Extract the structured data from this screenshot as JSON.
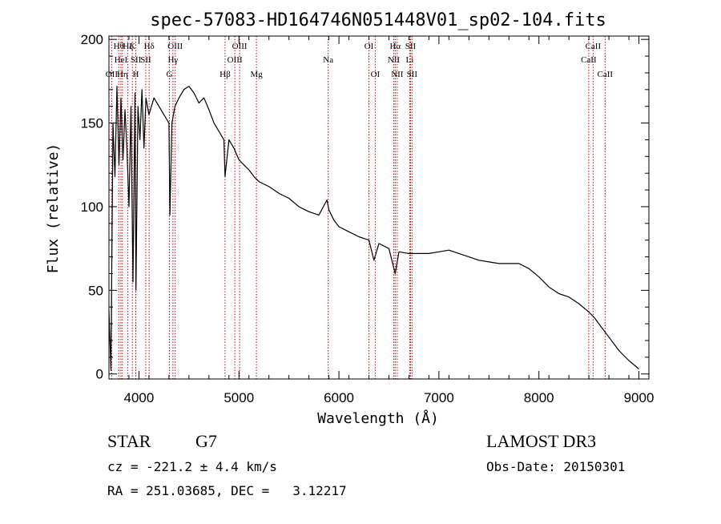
{
  "chart_data": {
    "type": "line",
    "title": "spec-57083-HD164746N051448V01_sp02-104.fits",
    "xlabel": "Wavelength (Å)",
    "ylabel": "Flux (relative)",
    "xlim": [
      3700,
      9100
    ],
    "ylim": [
      -3,
      202
    ],
    "x_ticks": [
      4000,
      5000,
      6000,
      7000,
      8000,
      9000
    ],
    "y_ticks": [
      0,
      50,
      100,
      150,
      200
    ],
    "grid": false,
    "series": [
      {
        "name": "spectrum",
        "color": "#000000",
        "points": [
          [
            3700,
            38
          ],
          [
            3720,
            2
          ],
          [
            3740,
            150
          ],
          [
            3760,
            118
          ],
          [
            3780,
            172
          ],
          [
            3800,
            125
          ],
          [
            3820,
            165
          ],
          [
            3840,
            128
          ],
          [
            3860,
            158
          ],
          [
            3880,
            134
          ],
          [
            3900,
            100
          ],
          [
            3920,
            160
          ],
          [
            3940,
            55
          ],
          [
            3960,
            168
          ],
          [
            3970,
            50
          ],
          [
            3990,
            160
          ],
          [
            4010,
            140
          ],
          [
            4030,
            170
          ],
          [
            4050,
            135
          ],
          [
            4070,
            165
          ],
          [
            4100,
            155
          ],
          [
            4150,
            165
          ],
          [
            4200,
            160
          ],
          [
            4250,
            155
          ],
          [
            4300,
            150
          ],
          [
            4310,
            95
          ],
          [
            4330,
            150
          ],
          [
            4360,
            160
          ],
          [
            4400,
            165
          ],
          [
            4450,
            170
          ],
          [
            4500,
            172
          ],
          [
            4550,
            168
          ],
          [
            4600,
            162
          ],
          [
            4650,
            165
          ],
          [
            4700,
            158
          ],
          [
            4750,
            150
          ],
          [
            4800,
            145
          ],
          [
            4850,
            140
          ],
          [
            4861,
            118
          ],
          [
            4900,
            140
          ],
          [
            4950,
            135
          ],
          [
            5000,
            128
          ],
          [
            5050,
            125
          ],
          [
            5100,
            122
          ],
          [
            5150,
            118
          ],
          [
            5200,
            115
          ],
          [
            5300,
            112
          ],
          [
            5400,
            108
          ],
          [
            5500,
            105
          ],
          [
            5600,
            100
          ],
          [
            5700,
            97
          ],
          [
            5800,
            95
          ],
          [
            5880,
            104
          ],
          [
            5900,
            98
          ],
          [
            5950,
            92
          ],
          [
            6000,
            88
          ],
          [
            6100,
            85
          ],
          [
            6200,
            82
          ],
          [
            6300,
            80
          ],
          [
            6350,
            68
          ],
          [
            6400,
            78
          ],
          [
            6500,
            75
          ],
          [
            6563,
            60
          ],
          [
            6600,
            73
          ],
          [
            6700,
            72
          ],
          [
            6800,
            72
          ],
          [
            6900,
            72
          ],
          [
            7000,
            73
          ],
          [
            7100,
            74
          ],
          [
            7200,
            72
          ],
          [
            7300,
            70
          ],
          [
            7400,
            68
          ],
          [
            7500,
            67
          ],
          [
            7600,
            66
          ],
          [
            7700,
            66
          ],
          [
            7800,
            66
          ],
          [
            7900,
            63
          ],
          [
            8000,
            58
          ],
          [
            8100,
            52
          ],
          [
            8200,
            48
          ],
          [
            8300,
            46
          ],
          [
            8400,
            42
          ],
          [
            8500,
            37
          ],
          [
            8550,
            34
          ],
          [
            8600,
            30
          ],
          [
            8700,
            22
          ],
          [
            8800,
            14
          ],
          [
            8900,
            8
          ],
          [
            9000,
            3
          ]
        ]
      }
    ],
    "lines": [
      {
        "label": "OII",
        "wl": 3727,
        "tier": 3
      },
      {
        "label": "Hθ",
        "wl": 3798,
        "tier": 1
      },
      {
        "label": "HeI",
        "wl": 3820,
        "tier": 2
      },
      {
        "label": "Hη",
        "wl": 3835,
        "tier": 3
      },
      {
        "label": "Hζ",
        "wl": 3889,
        "tier": 1
      },
      {
        "label": "K",
        "wl": 3934,
        "tier": 1
      },
      {
        "label": "SII",
        "wl": 3969,
        "tier": 2
      },
      {
        "label": "H",
        "wl": 3968,
        "tier": 3
      },
      {
        "label": "Hδ",
        "wl": 4102,
        "tier": 1
      },
      {
        "label": "SII",
        "wl": 4068,
        "tier": 2
      },
      {
        "label": "G",
        "wl": 4305,
        "tier": 3
      },
      {
        "label": "OIII",
        "wl": 4363,
        "tier": 1
      },
      {
        "label": "Hγ",
        "wl": 4340,
        "tier": 2
      },
      {
        "label": "Hβ",
        "wl": 4861,
        "tier": 3
      },
      {
        "label": "OIII",
        "wl": 4959,
        "tier": 2
      },
      {
        "label": "OIII",
        "wl": 5007,
        "tier": 1
      },
      {
        "label": "Mg",
        "wl": 5175,
        "tier": 3
      },
      {
        "label": "Na",
        "wl": 5893,
        "tier": 2
      },
      {
        "label": "OI",
        "wl": 6300,
        "tier": 1
      },
      {
        "label": "OI",
        "wl": 6363,
        "tier": 3
      },
      {
        "label": "NII",
        "wl": 6548,
        "tier": 2
      },
      {
        "label": "Hα",
        "wl": 6563,
        "tier": 1
      },
      {
        "label": "NII",
        "wl": 6583,
        "tier": 3
      },
      {
        "label": "SII",
        "wl": 6716,
        "tier": 1
      },
      {
        "label": "Li",
        "wl": 6708,
        "tier": 2
      },
      {
        "label": "SII",
        "wl": 6731,
        "tier": 3
      },
      {
        "label": "CaII",
        "wl": 8498,
        "tier": 2
      },
      {
        "label": "CaII",
        "wl": 8542,
        "tier": 1
      },
      {
        "label": "CaII",
        "wl": 8662,
        "tier": 3
      }
    ],
    "line_color": "#cc0000"
  },
  "info": {
    "object_class": "STAR",
    "subclass": "G7",
    "survey": "LAMOST DR3",
    "cz": "cz = -221.2 ± 4.4 km/s",
    "obs_date": "Obs-Date: 20150301",
    "coords": "RA = 251.03685, DEC =   3.12217"
  }
}
